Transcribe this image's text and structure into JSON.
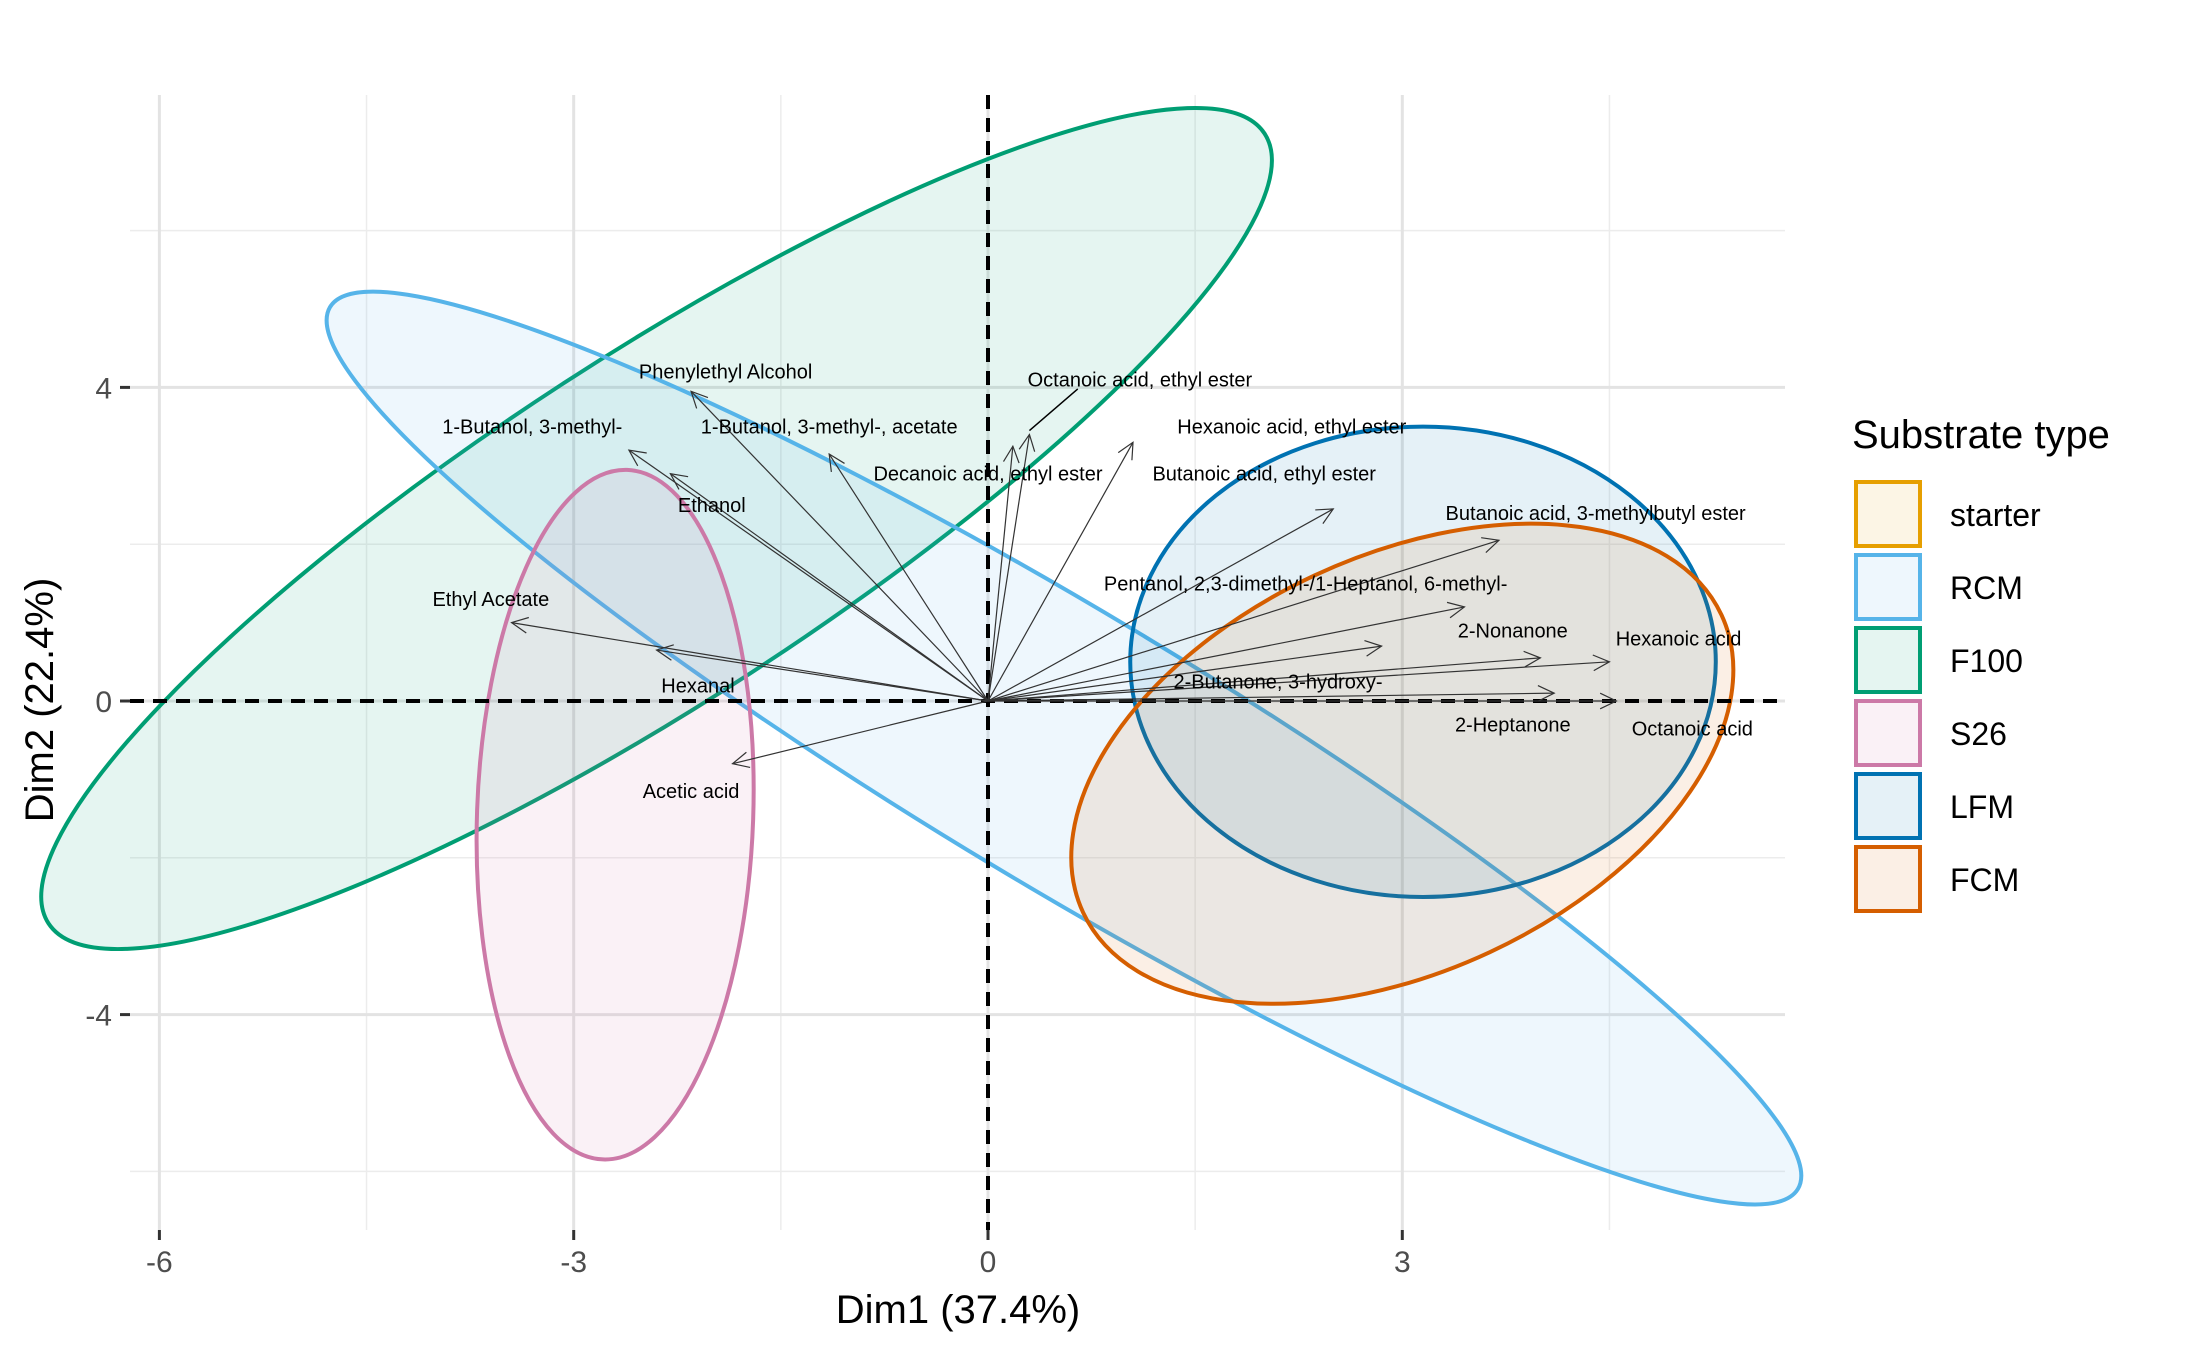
{
  "chart_data": {
    "type": "scatter",
    "subtype": "pca-biplot",
    "xlabel": "Dim1 (37.4%)",
    "ylabel": "Dim2 (22.4%)",
    "xlim": [
      -6.2,
      5.8
    ],
    "ylim": [
      -6.8,
      7.7
    ],
    "xticks": [
      -6,
      -3,
      0,
      3
    ],
    "xtick_labels": [
      "-6",
      "-3",
      "0",
      "3"
    ],
    "yticks": [
      -4,
      0,
      4
    ],
    "ytick_labels": [
      "-4",
      "0",
      "4"
    ],
    "grid": true,
    "reference_lines": {
      "x": 0,
      "y": 0,
      "style": "dashed"
    },
    "legend": {
      "title": "Substrate type",
      "position": "right",
      "entries": [
        {
          "name": "starter",
          "color": "#E69F00"
        },
        {
          "name": "RCM",
          "color": "#56B4E9"
        },
        {
          "name": "F100",
          "color": "#009E73"
        },
        {
          "name": "S26",
          "color": "#CC79A7"
        },
        {
          "name": "LFM",
          "color": "#0072B2"
        },
        {
          "name": "FCM",
          "color": "#D55E00"
        }
      ]
    },
    "ellipses": [
      {
        "group": "F100",
        "color": "#009E73",
        "center": [
          -2.4,
          2.2
        ],
        "rx": 5.25,
        "ry": 2.2,
        "angle_deg": -33
      },
      {
        "group": "RCM",
        "color": "#56B4E9",
        "center": [
          0.55,
          -0.6
        ],
        "rx": 6.2,
        "ry": 1.75,
        "angle_deg": 31
      },
      {
        "group": "S26",
        "color": "#CC79A7",
        "center": [
          -2.7,
          -1.45
        ],
        "rx": 1.0,
        "ry": 4.4,
        "angle_deg": 2
      },
      {
        "group": "LFM",
        "color": "#0072B2",
        "center": [
          3.15,
          0.5
        ],
        "rx": 2.12,
        "ry": 3.0,
        "angle_deg": 0
      },
      {
        "group": "FCM",
        "color": "#D55E00",
        "center": [
          3.0,
          -0.8
        ],
        "rx": 2.55,
        "ry": 2.65,
        "angle_deg": -25
      }
    ],
    "variables": [
      {
        "name": "Phenylethyl Alcohol",
        "x": -2.15,
        "y": 3.95,
        "label_pos": [
          -1.9,
          4.2
        ]
      },
      {
        "name": "1-Butanol, 3-methyl-",
        "x": -2.6,
        "y": 3.2,
        "label_pos": [
          -3.3,
          3.5
        ]
      },
      {
        "name": "1-Butanol, 3-methyl-, acetate",
        "x": -1.15,
        "y": 3.15,
        "label_pos": [
          -1.15,
          3.5
        ]
      },
      {
        "name": "Ethanol",
        "x": -2.3,
        "y": 2.9,
        "label_pos": [
          -2.0,
          2.5
        ]
      },
      {
        "name": "Octanoic acid, ethyl ester",
        "x": 0.3,
        "y": 3.4,
        "label_pos": [
          1.1,
          4.1
        ]
      },
      {
        "name": "Decanoic acid, ethyl ester",
        "x": 0.18,
        "y": 3.25,
        "label_pos": [
          0.0,
          2.9
        ]
      },
      {
        "name": "Hexanoic acid, ethyl ester",
        "x": 1.05,
        "y": 3.3,
        "label_pos": [
          2.2,
          3.5
        ]
      },
      {
        "name": "Butanoic acid, ethyl ester",
        "x": 2.5,
        "y": 2.45,
        "label_pos": [
          2.0,
          2.9
        ]
      },
      {
        "name": "Butanoic acid, 3-methylbutyl ester",
        "x": 3.7,
        "y": 2.05,
        "label_pos": [
          4.4,
          2.4
        ]
      },
      {
        "name": "Ethyl Acetate",
        "x": -3.45,
        "y": 1.0,
        "label_pos": [
          -3.6,
          1.3
        ]
      },
      {
        "name": "Pentanol, 2,3-dimethyl-/1-Heptanol, 6-methyl-",
        "x": 3.45,
        "y": 1.2,
        "label_pos": [
          2.3,
          1.5
        ]
      },
      {
        "name": "2-Nonanone",
        "x": 2.85,
        "y": 0.7,
        "label_pos": [
          3.8,
          0.9
        ]
      },
      {
        "name": "Hexanoic acid",
        "x": 4.0,
        "y": 0.55,
        "label_pos": [
          5.0,
          0.8
        ]
      },
      {
        "name": "Hexanal",
        "x": -2.4,
        "y": 0.65,
        "label_pos": [
          -2.1,
          0.2
        ]
      },
      {
        "name": "2-Butanone, 3-hydroxy-",
        "x": 4.5,
        "y": 0.5,
        "label_pos": [
          2.1,
          0.25
        ]
      },
      {
        "name": "2-Heptanone",
        "x": 4.1,
        "y": 0.1,
        "label_pos": [
          3.8,
          -0.3
        ]
      },
      {
        "name": "Octanoic acid",
        "x": 4.55,
        "y": 0.0,
        "label_pos": [
          5.1,
          -0.35
        ]
      },
      {
        "name": "Acetic acid",
        "x": -1.85,
        "y": -0.8,
        "label_pos": [
          -2.15,
          -1.15
        ]
      }
    ]
  }
}
